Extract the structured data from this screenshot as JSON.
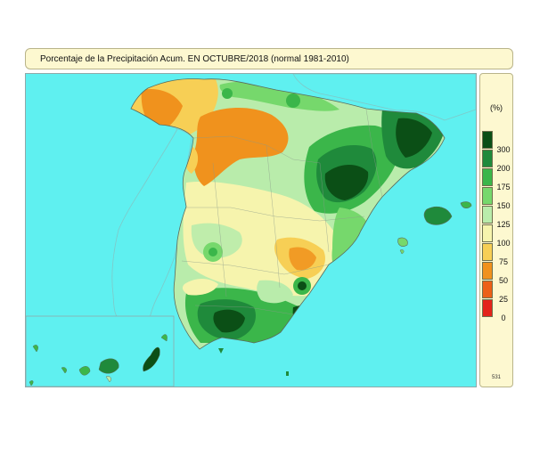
{
  "title": "Porcentaje de la Precipitación Acum. EN  OCTUBRE/2018  (normal 1981-2010)",
  "legend": {
    "unit": "(%)",
    "classes": [
      {
        "label": "300",
        "color": "#0b4f16"
      },
      {
        "label": "200",
        "color": "#1f8a3b"
      },
      {
        "label": "175",
        "color": "#3bb64a"
      },
      {
        "label": "150",
        "color": "#76d86c"
      },
      {
        "label": "125",
        "color": "#b9ecab"
      },
      {
        "label": "100",
        "color": "#f6f4ad"
      },
      {
        "label": "75",
        "color": "#f7cf55"
      },
      {
        "label": "50",
        "color": "#f0921d"
      },
      {
        "label": "25",
        "color": "#ec6018"
      },
      {
        "label": "0",
        "color": "#e3231a"
      }
    ],
    "code": "531"
  },
  "colors": {
    "sea": "#5ff0f0",
    "panel": "#fdf8d0",
    "border": "#8fa9a9"
  }
}
